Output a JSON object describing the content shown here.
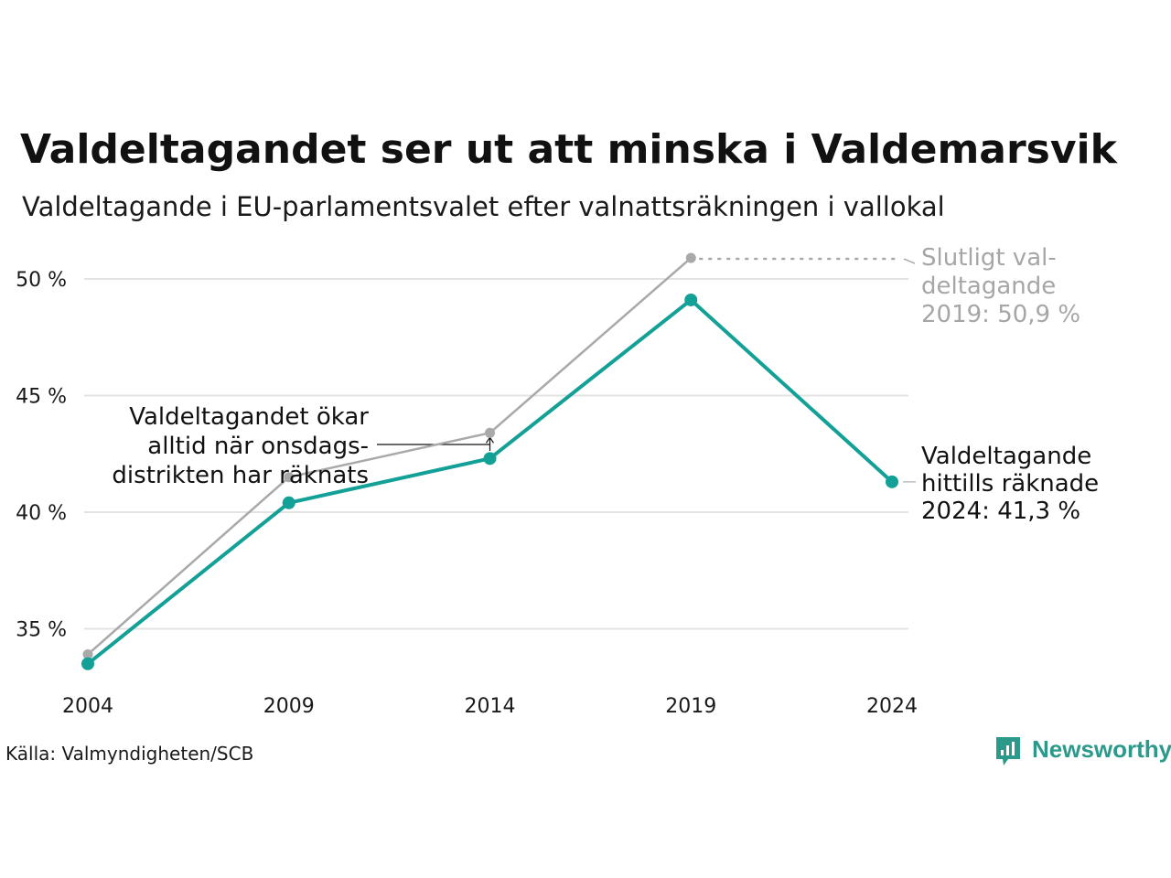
{
  "chart_data": {
    "type": "line",
    "title": "Valdeltagandet ser ut att minska i Valdemarsvik",
    "subtitle": "Valdeltagande i EU-parlamentsvalet efter valnattsräkningen i vallokal",
    "xlabel": "",
    "ylabel": "",
    "x": [
      "2004",
      "2009",
      "2014",
      "2019",
      "2024"
    ],
    "ylim": [
      33,
      51.5
    ],
    "yticks": [
      35,
      40,
      45,
      50
    ],
    "ytick_labels": [
      "35 %",
      "40 %",
      "45 %",
      "50 %"
    ],
    "grid": true,
    "series": [
      {
        "role": "final",
        "color": "#a9a9a9",
        "values": [
          33.9,
          41.5,
          43.4,
          50.9,
          null
        ]
      },
      {
        "role": "counted",
        "color": "#13a096",
        "values": [
          33.5,
          40.4,
          42.3,
          49.1,
          41.3
        ]
      }
    ],
    "annotations": {
      "final_note": [
        "Slutligt val-",
        "deltagande",
        "2019: 50,9 %"
      ],
      "counted_note": [
        "Valdeltagande",
        "hittills räknade",
        "2024: 41,3 %"
      ],
      "increase_note": [
        "Valdeltagandet ökar",
        "alltid när onsdags-",
        "distrikten har räknats"
      ]
    }
  },
  "footer": {
    "source": "Källa: Valmyndigheten/SCB",
    "brand": "Newsworthy",
    "brand_icon": "bar-chart-speech-bubble-icon",
    "brand_color": "#2b9a8a"
  }
}
